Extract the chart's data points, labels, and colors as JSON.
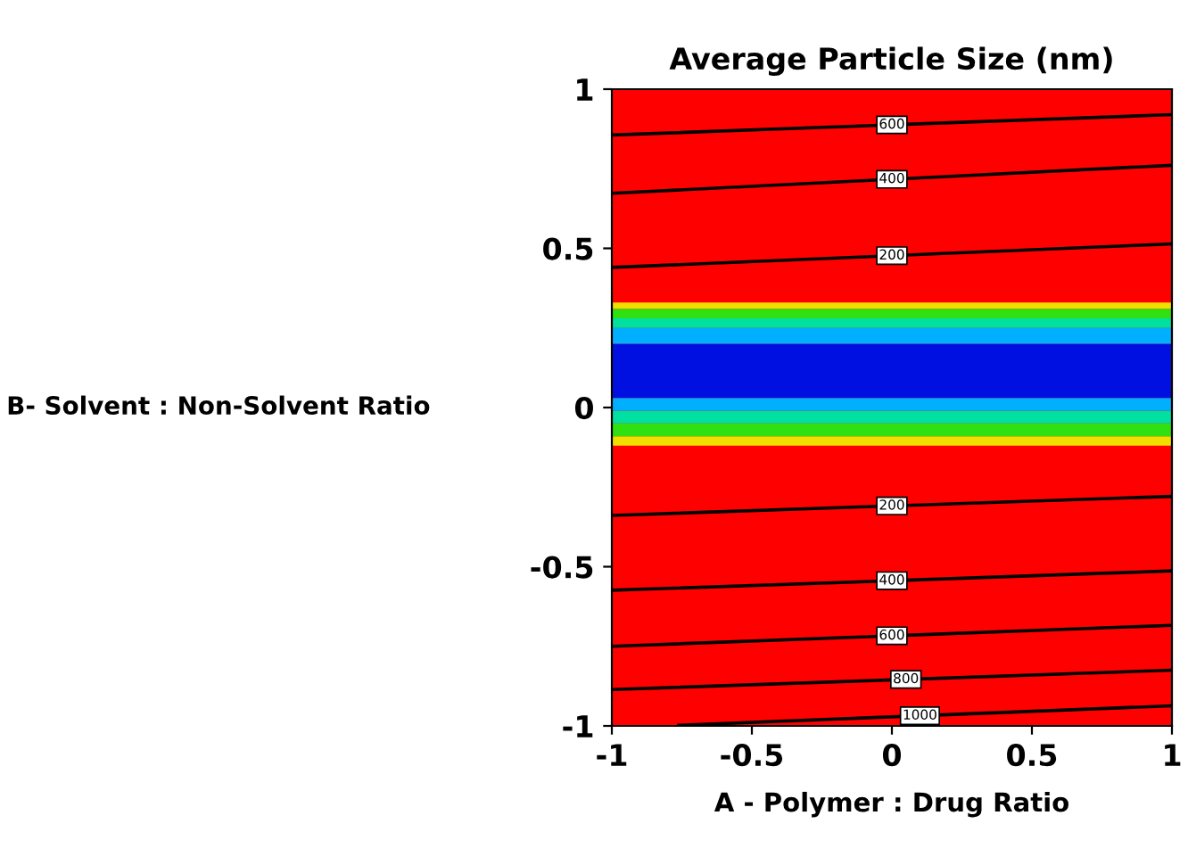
{
  "chart_data": {
    "type": "line",
    "title": "Average Particle Size (nm)",
    "xlabel": "A - Polymer : Drug Ratio",
    "ylabel": "B- Solvent : Non-Solvent Ratio",
    "xlim": [
      -1,
      1
    ],
    "ylim": [
      -1,
      1
    ],
    "xticks": [
      -1,
      -0.5,
      0,
      0.5,
      1
    ],
    "yticks": [
      -1,
      -0.5,
      0,
      0.5,
      1
    ],
    "grid": false,
    "legend": false,
    "marker": "none",
    "line_style": "solid",
    "bands": [
      {
        "axis": "y",
        "from": -1,
        "to": 1,
        "color": "#ff0000"
      },
      {
        "axis": "y",
        "from": -0.12,
        "to": -0.09,
        "color": "#f0e000"
      },
      {
        "axis": "y",
        "from": -0.09,
        "to": -0.05,
        "color": "#30e010"
      },
      {
        "axis": "y",
        "from": -0.05,
        "to": -0.01,
        "color": "#00e0a0"
      },
      {
        "axis": "y",
        "from": -0.01,
        "to": 0.03,
        "color": "#00b0ff"
      },
      {
        "axis": "y",
        "from": 0.03,
        "to": 0.2,
        "color": "#0010e0"
      },
      {
        "axis": "y",
        "from": 0.2,
        "to": 0.25,
        "color": "#00b0ff"
      },
      {
        "axis": "y",
        "from": 0.25,
        "to": 0.28,
        "color": "#00e0a0"
      },
      {
        "axis": "y",
        "from": 0.28,
        "to": 0.31,
        "color": "#30e010"
      },
      {
        "axis": "y",
        "from": 0.31,
        "to": 0.33,
        "color": "#f0e000"
      }
    ],
    "series": [
      {
        "name": "600",
        "color": "#000000",
        "x": [
          -1,
          0,
          1
        ],
        "values": [
          0.856,
          0.888,
          0.92
        ]
      },
      {
        "name": "400",
        "color": "#000000",
        "x": [
          -1,
          0,
          1
        ],
        "values": [
          0.673,
          0.717,
          0.761
        ]
      },
      {
        "name": "200",
        "color": "#000000",
        "x": [
          -1,
          0,
          1
        ],
        "values": [
          0.44,
          0.477,
          0.514
        ]
      },
      {
        "name": "200",
        "color": "#000000",
        "x": [
          -1,
          0,
          1
        ],
        "values": [
          -0.339,
          -0.309,
          -0.279
        ]
      },
      {
        "name": "400",
        "color": "#000000",
        "x": [
          -1,
          0,
          1
        ],
        "values": [
          -0.574,
          -0.544,
          -0.513
        ]
      },
      {
        "name": "600",
        "color": "#000000",
        "x": [
          -1,
          0,
          1
        ],
        "values": [
          -0.75,
          -0.717,
          -0.684
        ]
      },
      {
        "name": "800",
        "color": "#000000",
        "x": [
          -1,
          0.05,
          1
        ],
        "values": [
          -0.886,
          -0.854,
          -0.825
        ]
      },
      {
        "name": "1000",
        "color": "#000000",
        "x": [
          -0.76,
          0.1,
          1
        ],
        "values": [
          -0.998,
          -0.968,
          -0.937
        ]
      }
    ]
  }
}
